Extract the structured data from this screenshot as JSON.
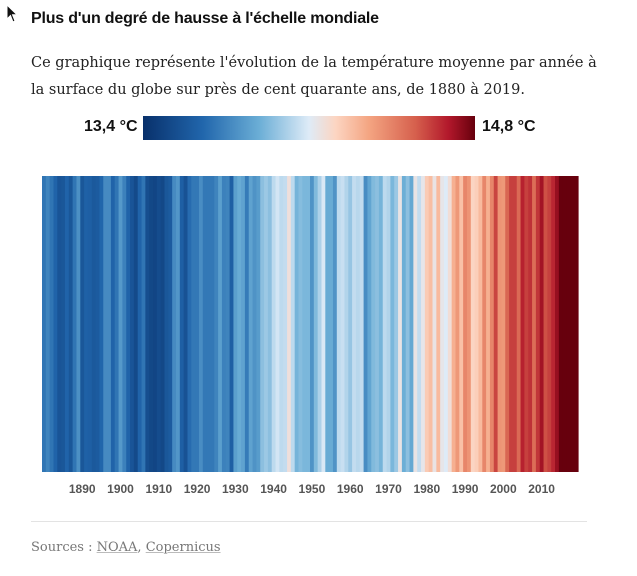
{
  "title": "Plus d'un degré de hausse à l'échelle mondiale",
  "description": "Ce graphique représente l'évolution de la température moyenne par année à la surface du globe sur près de cent quarante ans, de 1880 à 2019.",
  "colors": {
    "scale_min": "#08306b",
    "scale_mid": "#f7f7f7",
    "scale_max": "#67000d"
  },
  "legend": {
    "min_label": "13,4 °C",
    "max_label": "14,8 °C"
  },
  "chart_data": {
    "type": "heatmap",
    "title": "",
    "x": [
      1880,
      1881,
      1882,
      1883,
      1884,
      1885,
      1886,
      1887,
      1888,
      1889,
      1890,
      1891,
      1892,
      1893,
      1894,
      1895,
      1896,
      1897,
      1898,
      1899,
      1900,
      1901,
      1902,
      1903,
      1904,
      1905,
      1906,
      1907,
      1908,
      1909,
      1910,
      1911,
      1912,
      1913,
      1914,
      1915,
      1916,
      1917,
      1918,
      1919,
      1920,
      1921,
      1922,
      1923,
      1924,
      1925,
      1926,
      1927,
      1928,
      1929,
      1930,
      1931,
      1932,
      1933,
      1934,
      1935,
      1936,
      1937,
      1938,
      1939,
      1940,
      1941,
      1942,
      1943,
      1944,
      1945,
      1946,
      1947,
      1948,
      1949,
      1950,
      1951,
      1952,
      1953,
      1954,
      1955,
      1956,
      1957,
      1958,
      1959,
      1960,
      1961,
      1962,
      1963,
      1964,
      1965,
      1966,
      1967,
      1968,
      1969,
      1970,
      1971,
      1972,
      1973,
      1974,
      1975,
      1976,
      1977,
      1978,
      1979,
      1980,
      1981,
      1982,
      1983,
      1984,
      1985,
      1986,
      1987,
      1988,
      1989,
      1990,
      1991,
      1992,
      1993,
      1994,
      1995,
      1996,
      1997,
      1998,
      1999,
      2000,
      2001,
      2002,
      2003,
      2004,
      2005,
      2006,
      2007,
      2008,
      2009,
      2010,
      2011,
      2012,
      2013,
      2014,
      2015,
      2016,
      2017,
      2018,
      2019
    ],
    "values": [
      13.7,
      13.75,
      13.7,
      13.64,
      13.57,
      13.58,
      13.64,
      13.58,
      13.7,
      13.79,
      13.58,
      13.63,
      13.62,
      13.59,
      13.6,
      13.65,
      13.77,
      13.77,
      13.64,
      13.7,
      13.82,
      13.74,
      13.64,
      13.57,
      13.52,
      13.64,
      13.7,
      13.54,
      13.51,
      13.5,
      13.53,
      13.51,
      13.58,
      13.6,
      13.77,
      13.81,
      13.62,
      13.56,
      13.67,
      13.71,
      13.71,
      13.78,
      13.71,
      13.71,
      13.71,
      13.75,
      13.84,
      13.74,
      13.75,
      13.62,
      13.84,
      13.88,
      13.85,
      13.72,
      13.85,
      13.8,
      13.83,
      13.95,
      13.98,
      13.95,
      14.04,
      14.08,
      14.04,
      14.05,
      14.16,
      14.04,
      13.91,
      13.94,
      13.92,
      13.92,
      13.8,
      13.93,
      14.01,
      14.09,
      13.88,
      13.88,
      13.8,
      14.04,
      14.06,
      14.02,
      13.97,
      14.05,
      14.03,
      14.05,
      13.78,
      13.86,
      13.93,
      13.95,
      13.91,
      14.04,
      14.02,
      13.92,
      13.98,
      14.14,
      13.89,
      13.95,
      13.87,
      14.14,
      14.05,
      14.13,
      14.24,
      14.28,
      14.14,
      14.29,
      14.13,
      14.1,
      14.17,
      14.32,
      14.39,
      14.27,
      14.44,
      14.4,
      14.21,
      14.23,
      14.29,
      14.44,
      14.32,
      14.44,
      14.6,
      14.4,
      14.39,
      14.53,
      14.61,
      14.61,
      14.52,
      14.67,
      14.61,
      14.64,
      14.51,
      14.63,
      14.71,
      14.58,
      14.61,
      14.66,
      14.73,
      14.89,
      14.99,
      14.91,
      14.82,
      14.95
    ],
    "scale": {
      "min": 13.4,
      "max": 14.8,
      "unit": "°C"
    },
    "xticks": [
      "1890",
      "1900",
      "1910",
      "1920",
      "1930",
      "1940",
      "1950",
      "1960",
      "1970",
      "1980",
      "1990",
      "2000",
      "2010"
    ],
    "xlabel": "",
    "ylabel": ""
  },
  "sources": {
    "prefix": "Sources : ",
    "items": [
      "NOAA",
      "Copernicus"
    ],
    "separator": ", "
  }
}
